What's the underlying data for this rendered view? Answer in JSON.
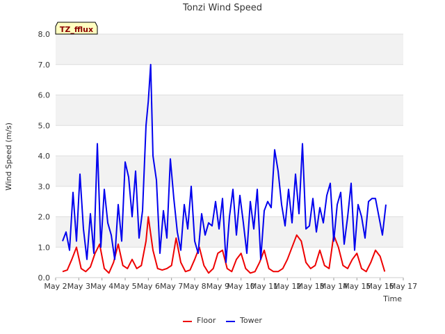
{
  "chart_data": {
    "type": "line",
    "title": "Tonzi Wind Speed",
    "xlabel": "Time",
    "ylabel": "Wind Speed (m/s)",
    "badge": "TZ_fflux",
    "ylim": [
      0,
      8
    ],
    "xlim": [
      2,
      17
    ],
    "y_ticks": [
      "0.0",
      "1.0",
      "2.0",
      "3.0",
      "4.0",
      "5.0",
      "6.0",
      "7.0",
      "8.0"
    ],
    "x_ticks": [
      "May 2",
      "May 3",
      "May 4",
      "May 5",
      "May 6",
      "May 7",
      "May 8",
      "May 9",
      "May 10",
      "May 11",
      "May 12",
      "May 13",
      "May 14",
      "May 15",
      "May 16",
      "May 17"
    ],
    "grid": true,
    "legend_position": "bottom",
    "series": [
      {
        "name": "Floor",
        "color": "#ee0000",
        "x": [
          2.3,
          2.5,
          2.7,
          2.9,
          3.1,
          3.3,
          3.5,
          3.7,
          3.9,
          4.1,
          4.3,
          4.5,
          4.7,
          4.9,
          5.1,
          5.3,
          5.5,
          5.7,
          5.9,
          6.0,
          6.2,
          6.4,
          6.6,
          6.8,
          7.0,
          7.2,
          7.4,
          7.6,
          7.8,
          8.0,
          8.2,
          8.4,
          8.6,
          8.8,
          9.0,
          9.2,
          9.4,
          9.6,
          9.8,
          10.0,
          10.2,
          10.4,
          10.6,
          10.8,
          11.0,
          11.2,
          11.4,
          11.6,
          11.8,
          12.0,
          12.2,
          12.4,
          12.6,
          12.8,
          13.0,
          13.2,
          13.4,
          13.6,
          13.8,
          14.0,
          14.2,
          14.4,
          14.6,
          14.8,
          15.0,
          15.2,
          15.4,
          15.6,
          15.8,
          16.0,
          16.2
        ],
        "y": [
          0.2,
          0.25,
          0.6,
          1.0,
          0.3,
          0.2,
          0.35,
          0.8,
          1.1,
          0.3,
          0.15,
          0.5,
          1.1,
          0.4,
          0.3,
          0.6,
          0.3,
          0.4,
          1.2,
          2.0,
          0.9,
          0.3,
          0.25,
          0.3,
          0.4,
          1.3,
          0.5,
          0.2,
          0.25,
          0.6,
          1.0,
          0.4,
          0.15,
          0.3,
          0.8,
          0.9,
          0.3,
          0.2,
          0.6,
          0.8,
          0.3,
          0.15,
          0.2,
          0.5,
          0.9,
          0.3,
          0.2,
          0.2,
          0.3,
          0.6,
          1.0,
          1.4,
          1.2,
          0.5,
          0.3,
          0.4,
          0.9,
          0.4,
          0.3,
          1.4,
          1.0,
          0.4,
          0.3,
          0.6,
          0.8,
          0.3,
          0.2,
          0.5,
          0.9,
          0.7,
          0.2
        ]
      },
      {
        "name": "Tower",
        "color": "#0000ee",
        "x": [
          2.3,
          2.45,
          2.6,
          2.75,
          2.9,
          3.05,
          3.2,
          3.35,
          3.5,
          3.65,
          3.8,
          3.95,
          4.1,
          4.25,
          4.4,
          4.55,
          4.7,
          4.85,
          5.0,
          5.15,
          5.3,
          5.45,
          5.6,
          5.75,
          5.9,
          6.0,
          6.1,
          6.2,
          6.35,
          6.5,
          6.65,
          6.8,
          6.95,
          7.1,
          7.25,
          7.4,
          7.55,
          7.7,
          7.85,
          8.0,
          8.15,
          8.3,
          8.45,
          8.6,
          8.75,
          8.9,
          9.05,
          9.2,
          9.35,
          9.5,
          9.65,
          9.8,
          9.95,
          10.1,
          10.25,
          10.4,
          10.55,
          10.7,
          10.85,
          11.0,
          11.15,
          11.3,
          11.45,
          11.6,
          11.75,
          11.9,
          12.05,
          12.2,
          12.35,
          12.5,
          12.65,
          12.8,
          12.95,
          13.1,
          13.25,
          13.4,
          13.55,
          13.7,
          13.85,
          14.0,
          14.15,
          14.3,
          14.45,
          14.6,
          14.75,
          14.9,
          15.05,
          15.2,
          15.35,
          15.5,
          15.65,
          15.8,
          15.95,
          16.1,
          16.25
        ],
        "y": [
          1.2,
          1.5,
          0.9,
          2.8,
          1.2,
          3.4,
          1.6,
          0.6,
          2.1,
          0.8,
          4.4,
          1.0,
          2.9,
          1.8,
          1.4,
          0.6,
          2.4,
          1.2,
          3.8,
          3.3,
          2.0,
          3.5,
          1.3,
          2.2,
          5.0,
          5.8,
          7.0,
          4.0,
          3.2,
          0.8,
          2.2,
          1.3,
          3.9,
          2.6,
          1.5,
          0.9,
          2.4,
          1.6,
          3.0,
          1.2,
          0.8,
          2.1,
          1.4,
          1.8,
          1.7,
          2.5,
          1.6,
          2.6,
          0.5,
          2.0,
          2.9,
          1.4,
          2.7,
          1.8,
          0.8,
          2.5,
          1.6,
          2.9,
          0.6,
          2.2,
          2.5,
          2.3,
          4.2,
          3.5,
          2.4,
          1.7,
          2.9,
          1.8,
          3.4,
          2.1,
          4.4,
          1.6,
          1.7,
          2.6,
          1.5,
          2.3,
          1.8,
          2.7,
          3.1,
          1.2,
          2.4,
          2.8,
          1.1,
          2.0,
          3.1,
          0.9,
          2.4,
          2.0,
          1.3,
          2.5,
          2.6,
          2.6,
          2.0,
          1.4,
          2.4
        ]
      }
    ]
  }
}
